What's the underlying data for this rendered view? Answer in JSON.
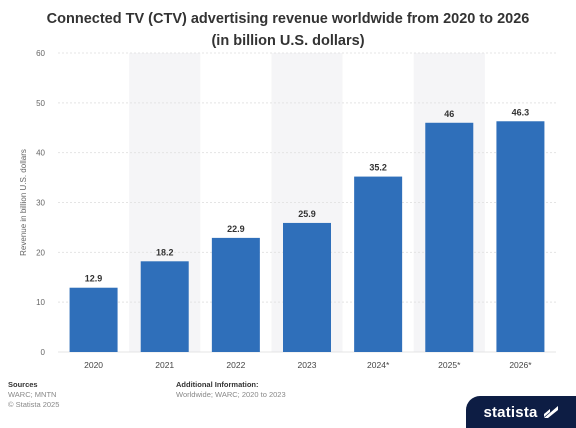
{
  "title": "Connected TV (CTV) advertising revenue worldwide from 2020 to 2026 (in billion U.S. dollars)",
  "footer": {
    "sources_heading": "Sources",
    "sources_text": "WARC; MNTN",
    "copyright": "© Statista 2025",
    "additional_heading": "Additional Information:",
    "additional_text": "Worldwide; WARC; 2020 to 2023"
  },
  "brand": {
    "name": "statista"
  },
  "colors": {
    "bar": "#2f6fba",
    "band": "#f5f5f7",
    "grid": "#e4e4e4"
  },
  "chart_data": {
    "type": "bar",
    "categories": [
      "2020",
      "2021",
      "2022",
      "2023",
      "2024*",
      "2025*",
      "2026*"
    ],
    "values": [
      12.9,
      18.2,
      22.9,
      25.9,
      35.2,
      46,
      46.3
    ],
    "value_labels": [
      "12.9",
      "18.2",
      "22.9",
      "25.9",
      "35.2",
      "46",
      "46.3"
    ],
    "ylabel": "Revenue in billion U.S. dollars",
    "xlabel": "",
    "ylim": [
      0,
      60
    ],
    "yticks": [
      0,
      10,
      20,
      30,
      40,
      50,
      60
    ],
    "grid": true,
    "alternating_bands": true
  }
}
